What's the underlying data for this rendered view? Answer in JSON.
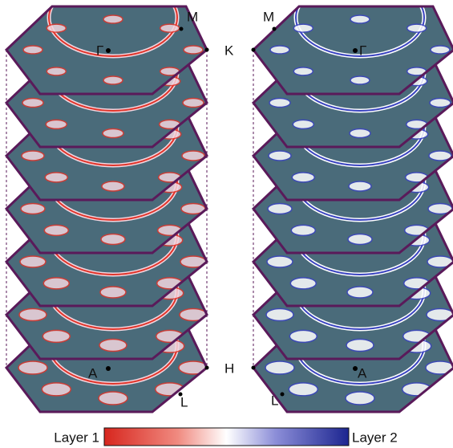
{
  "labels": {
    "M": "M",
    "K": "K",
    "Gamma": "Γ",
    "H": "H",
    "A": "A",
    "L": "L"
  },
  "colorbar": {
    "left_label": "Layer 1",
    "right_label": "Layer 2"
  }
}
